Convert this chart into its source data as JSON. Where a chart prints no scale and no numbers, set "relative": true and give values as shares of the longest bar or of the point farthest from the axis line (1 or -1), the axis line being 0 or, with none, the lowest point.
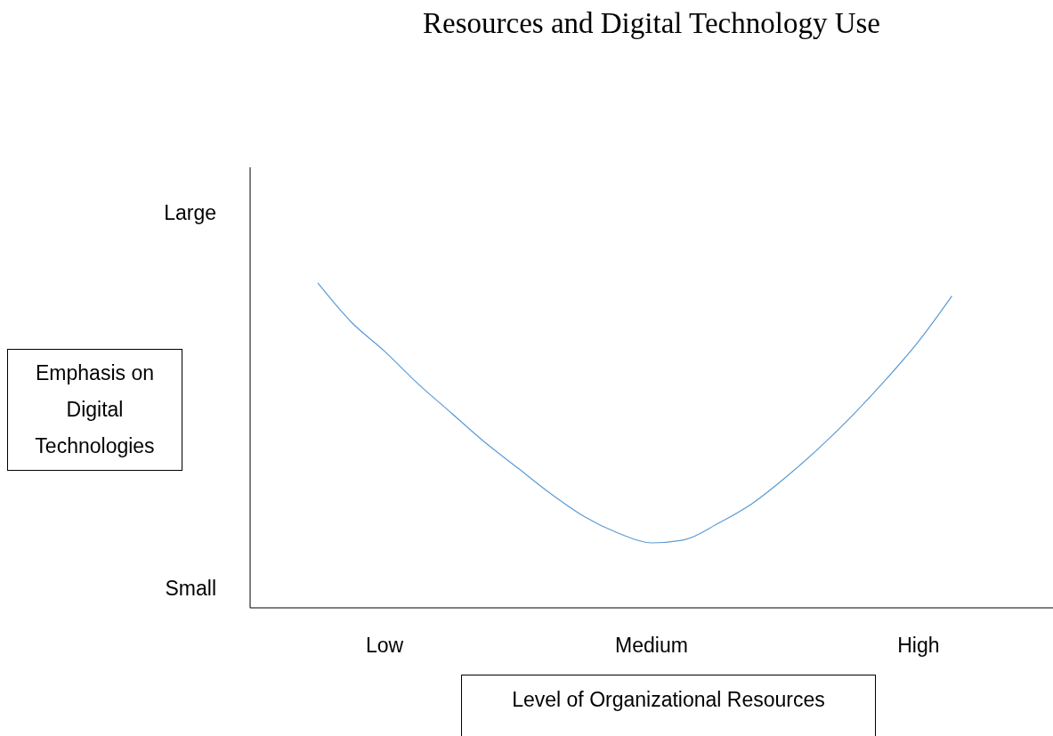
{
  "chart_data": {
    "type": "line",
    "title": "Resources and Digital Technology Use",
    "xlabel": "Level of Organizational Resources",
    "categories": [
      null,
      null,
      "Low",
      null,
      null,
      null,
      null,
      null,
      null,
      null,
      "Medium",
      null,
      null,
      null,
      null,
      null,
      null,
      null,
      "High",
      null
    ],
    "values": [
      1,
      0.88,
      0.79,
      0.69,
      0.6,
      0.51,
      0.43,
      0.35,
      0.28,
      0.23,
      0.2,
      0.21,
      0.26,
      0.32,
      0.4,
      0.49,
      0.59,
      0.7,
      0.82,
      0.96
    ],
    "color": "#5b9bd5",
    "relative": true,
    "annotations": [
      "Large",
      "Small",
      "Emphasis on Digital Technologies"
    ],
    "grid": false
  }
}
